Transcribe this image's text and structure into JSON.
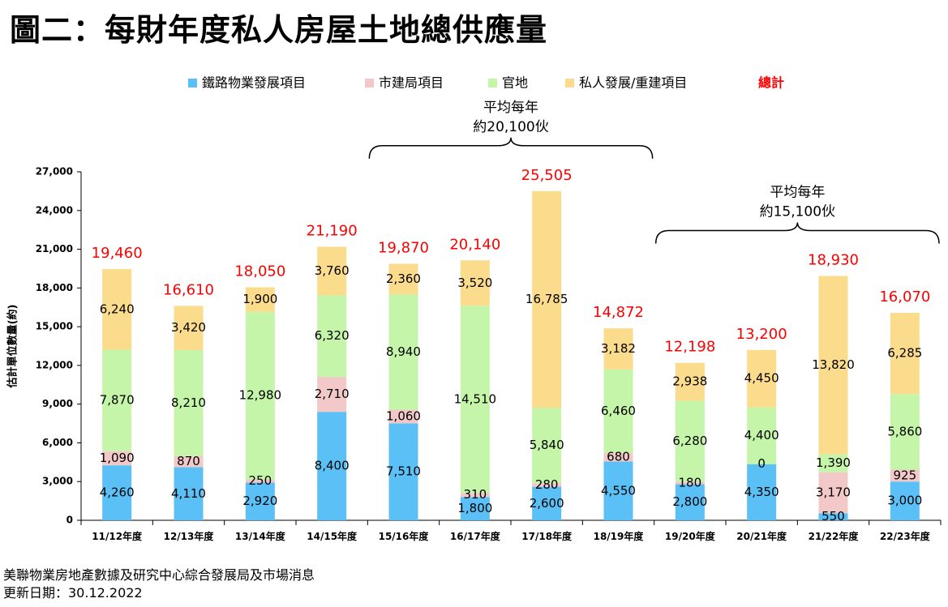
{
  "title": "圖二：每財年度私人房屋土地總供應量",
  "colors": {
    "rail": "#5BC0F5",
    "ura": "#F2C8C8",
    "gov": "#C4F5A8",
    "private": "#FBDB8C",
    "total": "#FF0000"
  },
  "chart_data": {
    "type": "bar",
    "stacked": true,
    "ylabel": "估計單位數量(約)",
    "ylim": [
      0,
      27000
    ],
    "yticks": [
      "0",
      "3,000",
      "6,000",
      "9,000",
      "12,000",
      "15,000",
      "18,000",
      "21,000",
      "24,000",
      "27,000"
    ],
    "grid": false,
    "legend_position": "top-center",
    "categories": [
      "11/12年度",
      "12/13年度",
      "13/14年度",
      "14/15年度",
      "15/16年度",
      "16/17年度",
      "17/18年度",
      "18/19年度",
      "19/20年度",
      "20/21年度",
      "21/22年度",
      "22/23年度"
    ],
    "series": [
      {
        "key": "rail",
        "name": "鐵路物業發展項目",
        "values": [
          4260,
          4110,
          2920,
          8400,
          7510,
          1800,
          2600,
          4550,
          2800,
          4350,
          550,
          3000
        ],
        "labels": [
          "4,260",
          "4,110",
          "2,920",
          "8,400",
          "7,510",
          "1,800",
          "2,600",
          "4,550",
          "2,800",
          "4,350",
          "550",
          "3,000"
        ]
      },
      {
        "key": "ura",
        "name": "市建局項目",
        "values": [
          1090,
          870,
          250,
          2710,
          1060,
          310,
          280,
          680,
          180,
          0,
          3170,
          925
        ],
        "labels": [
          "1,090",
          "870",
          "250",
          "2,710",
          "1,060",
          "310",
          "280",
          "680",
          "180",
          "0",
          "3,170",
          "925"
        ]
      },
      {
        "key": "gov",
        "name": "官地",
        "values": [
          7870,
          8210,
          12980,
          6320,
          8940,
          14510,
          5840,
          6460,
          6280,
          4400,
          1390,
          5860
        ],
        "labels": [
          "7,870",
          "8,210",
          "12,980",
          "6,320",
          "8,940",
          "14,510",
          "5,840",
          "6,460",
          "6,280",
          "4,400",
          "1,390",
          "5,860"
        ]
      },
      {
        "key": "private",
        "name": "私人發展/重建項目",
        "values": [
          6240,
          3420,
          1900,
          3760,
          2360,
          3520,
          16785,
          3182,
          2938,
          4450,
          13820,
          6285
        ],
        "labels": [
          "6,240",
          "3,420",
          "1,900",
          "3,760",
          "2,360",
          "3,520",
          "16,785",
          "3,182",
          "2,938",
          "4,450",
          "13,820",
          "6,285"
        ]
      }
    ],
    "totals": {
      "name": "總計",
      "values": [
        19460,
        16610,
        18050,
        21190,
        19870,
        20140,
        25505,
        14872,
        12198,
        13200,
        18930,
        16070
      ],
      "labels": [
        "19,460",
        "16,610",
        "18,050",
        "21,190",
        "19,870",
        "20,140",
        "25,505",
        "14,872",
        "12,198",
        "13,200",
        "18,930",
        "16,070"
      ]
    },
    "annotations": [
      {
        "line1": "平均每年",
        "line2": "約20,100伙",
        "from_category": "15/16年度",
        "to_category": "18/19年度"
      },
      {
        "line1": "平均每年",
        "line2": "約15,100伙",
        "from_category": "19/20年度",
        "to_category": "22/23年度"
      }
    ]
  },
  "footer": {
    "source": "美聯物業房地產數據及研究中心綜合發展局及市場消息",
    "updated": "更新日期：30.12.2022"
  }
}
